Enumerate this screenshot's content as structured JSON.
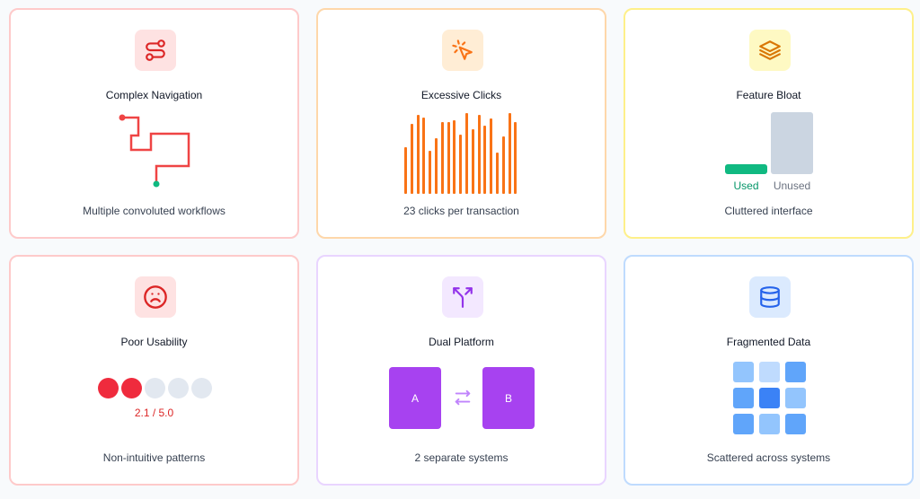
{
  "colors": {
    "red": "#ef4444",
    "orange": "#f97316",
    "amber": "#d97706",
    "purple": "#a742f0",
    "blue": "#2563eb",
    "green": "#10b981"
  },
  "cards": [
    {
      "title": "Complex Navigation",
      "caption": "Multiple convoluted workflows",
      "icon": "route-icon"
    },
    {
      "title": "Excessive Clicks",
      "caption": "23 clicks per transaction",
      "icon": "cursor-click-icon"
    },
    {
      "title": "Feature Bloat",
      "caption": "Cluttered interface",
      "icon": "layers-icon"
    },
    {
      "title": "Poor Usability",
      "caption": "Non-intuitive patterns",
      "icon": "frown-icon"
    },
    {
      "title": "Dual Platform",
      "caption": "2 separate systems",
      "icon": "split-icon"
    },
    {
      "title": "Fragmented Data",
      "caption": "Scattered across systems",
      "icon": "database-icon"
    }
  ],
  "feature_bloat": {
    "used_label": "Used",
    "unused_label": "Unused"
  },
  "usability": {
    "rating_text": "2.1 / 5.0",
    "rating": 2.1,
    "max": 5,
    "filled_dots": 2,
    "total_dots": 5
  },
  "dual_platform": {
    "system_a": "A",
    "system_b": "B"
  }
}
